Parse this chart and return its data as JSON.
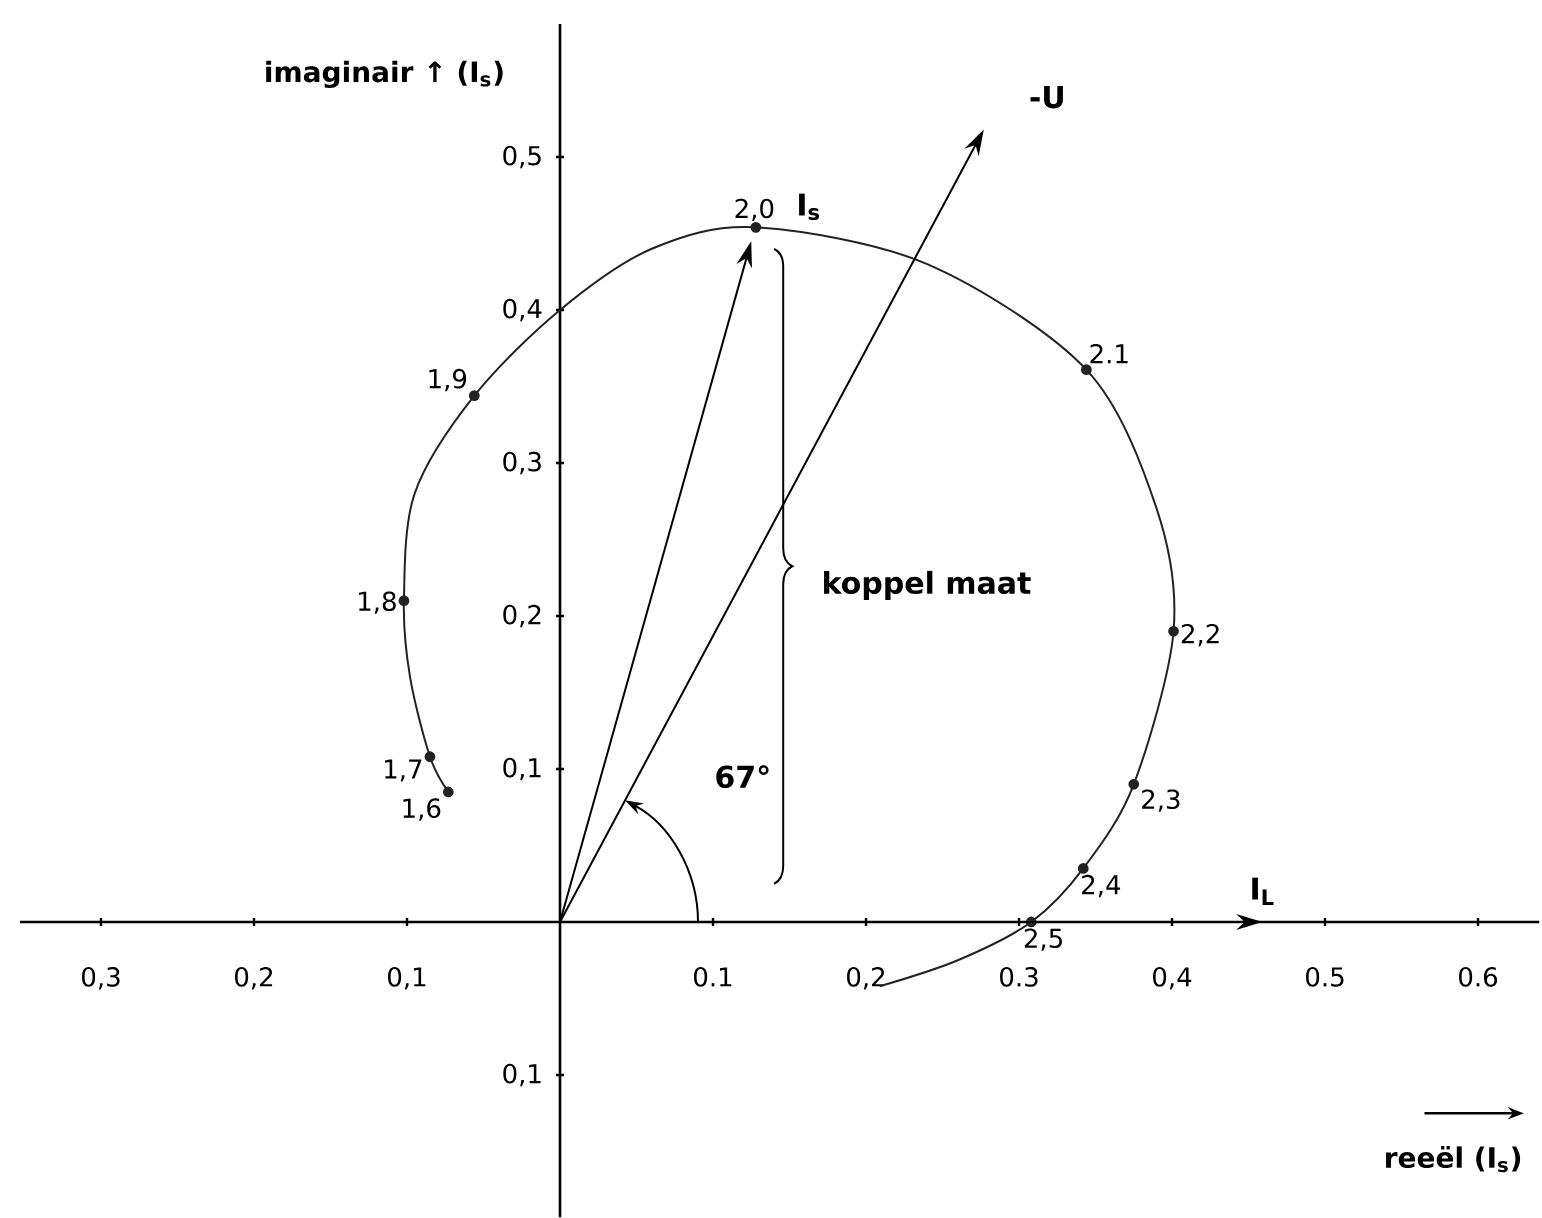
{
  "chart_data": {
    "type": "line",
    "xlabel": "reeël (I$_{s}$)",
    "ylabel": "imaginair ↑ (I$_{s}$)",
    "xlim": [
      -0.353,
      0.64
    ],
    "ylim": [
      -0.193,
      0.587
    ],
    "xticks": [
      {
        "value": -0.3,
        "label": "0,3"
      },
      {
        "value": -0.2,
        "label": "0,2"
      },
      {
        "value": -0.1,
        "label": "0,1"
      },
      0.1,
      {
        "value": 0.2,
        "label": "0,2"
      },
      0.3,
      {
        "value": 0.4,
        "label": "0,4"
      },
      0.5,
      0.6
    ],
    "yticks": [
      {
        "value": -0.1,
        "label": "0,1"
      },
      {
        "value": 0.1,
        "label": "0,1"
      },
      {
        "value": 0.2,
        "label": "0,2"
      },
      {
        "value": 0.3,
        "label": "0,3"
      },
      {
        "value": 0.4,
        "label": "0,4"
      },
      {
        "value": 0.5,
        "label": "0,5"
      }
    ],
    "series": [
      {
        "color": "#222222",
        "marker": "none",
        "x": [
          -0.073,
          -0.085,
          -0.098,
          -0.102,
          -0.095,
          -0.056,
          0,
          0.06,
          0.128,
          0.24,
          0.344,
          0.39,
          0.401,
          0.375,
          0.342,
          0.308,
          0.26,
          0.209
        ],
        "values": [
          0.085,
          0.108,
          0.16,
          0.21,
          0.28,
          0.344,
          0.4,
          0.44,
          0.454,
          0.43,
          0.361,
          0.27,
          0.19,
          0.09,
          0.035,
          0,
          -0.025,
          -0.042
        ]
      },
      {
        "type": "scatter",
        "color": "#222222",
        "marker": "circle",
        "x": [
          -0.073,
          -0.085,
          -0.102,
          -0.056,
          0.128,
          0.344,
          0.401,
          0.375,
          0.342,
          0.308
        ],
        "values": [
          0.085,
          0.108,
          0.21,
          0.344,
          0.454,
          0.361,
          0.19,
          0.09,
          0.035,
          0
        ]
      }
    ],
    "annotations": [
      "koppel maat",
      "67°",
      "I$_{s}$",
      "-U",
      "I$_{L}$",
      {
        "text": "1,6",
        "x": -0.073,
        "y": 0.085
      },
      {
        "text": "1,7",
        "x": -0.085,
        "y": 0.108
      },
      {
        "text": "1,8",
        "x": -0.102,
        "y": 0.21
      },
      {
        "text": "1,9",
        "x": -0.056,
        "y": 0.344
      },
      {
        "text": "2,0",
        "x": 0.128,
        "y": 0.454
      },
      {
        "text": "2.1",
        "x": 0.344,
        "y": 0.361
      },
      {
        "text": "2,2",
        "x": 0.401,
        "y": 0.19
      },
      {
        "text": "2,3",
        "x": 0.375,
        "y": 0.09
      },
      {
        "text": "2,4",
        "x": 0.342,
        "y": 0.035
      },
      {
        "text": "2,5",
        "x": 0.308,
        "y": 0
      }
    ]
  }
}
